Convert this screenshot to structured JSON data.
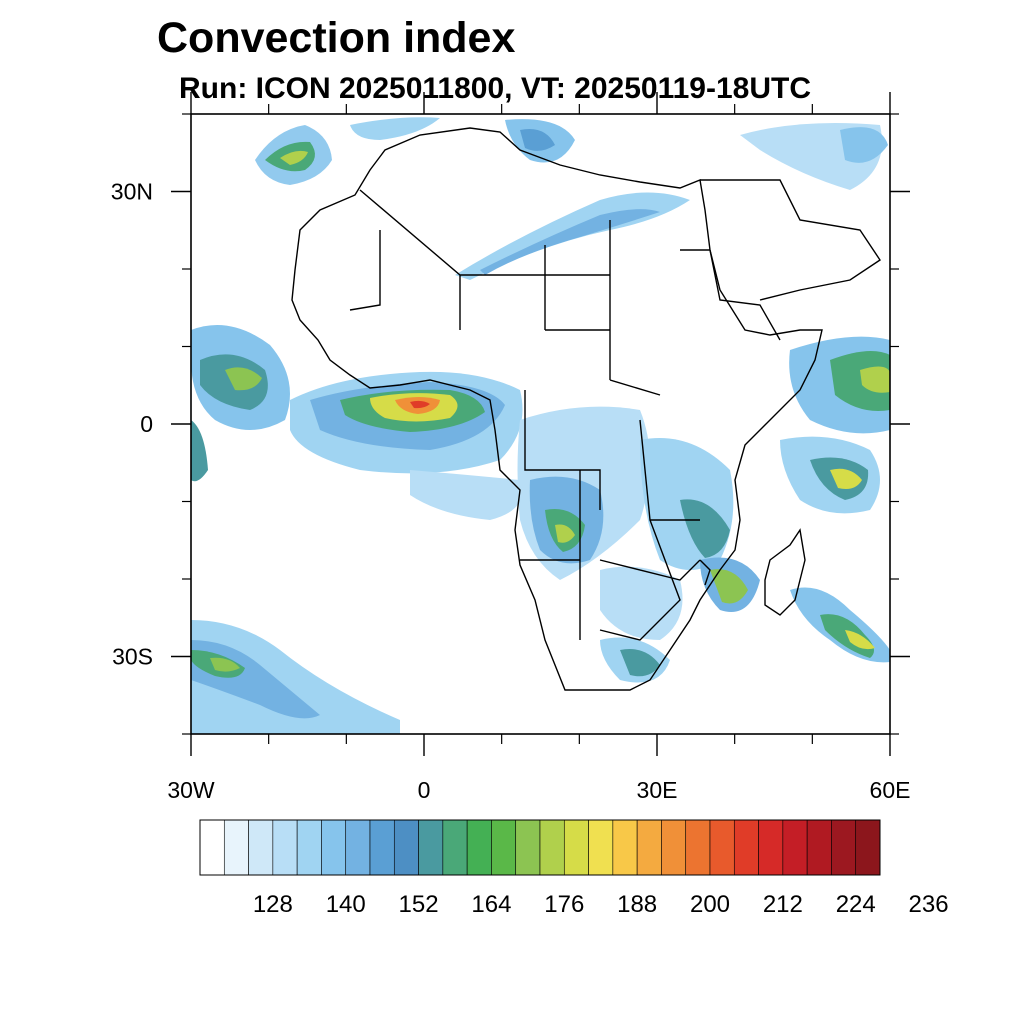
{
  "title": "Convection index",
  "subtitle": "Run: ICON 2025011800,  VT: 20250119-18UTC",
  "map": {
    "lon_range": [
      -30,
      60
    ],
    "lat_range": [
      -40,
      40
    ],
    "lat_ticks": [
      {
        "value": 30,
        "label": "30N"
      },
      {
        "value": 0,
        "label": "0"
      },
      {
        "value": -30,
        "label": "30S"
      }
    ],
    "lon_ticks": [
      {
        "value": -30,
        "label": "30W"
      },
      {
        "value": 0,
        "label": "0"
      },
      {
        "value": 30,
        "label": "30E"
      },
      {
        "value": 60,
        "label": "60E"
      }
    ],
    "minor_lat_ticks": [
      -40,
      -20,
      -10,
      10,
      20,
      40
    ],
    "minor_lon_ticks": [
      -20,
      -10,
      10,
      20,
      40,
      50
    ]
  },
  "colorbar": {
    "labels": [
      "128",
      "140",
      "152",
      "164",
      "176",
      "188",
      "200",
      "212",
      "224",
      "236"
    ],
    "colors": [
      "#ffffff",
      "#e8f4fc",
      "#cfe8f8",
      "#b8def6",
      "#a0d4f2",
      "#86c4ec",
      "#73b2e2",
      "#5a9fd4",
      "#4d8fc4",
      "#4a9aa0",
      "#4aa878",
      "#44b054",
      "#5ab848",
      "#8cc452",
      "#b0d04c",
      "#d6dc48",
      "#f0e050",
      "#f8c848",
      "#f4aa40",
      "#f09038",
      "#ec7430",
      "#e85a2c",
      "#e03c28",
      "#d62a28",
      "#c41e26",
      "#b01a22",
      "#9c1820",
      "#8c161c"
    ]
  }
}
